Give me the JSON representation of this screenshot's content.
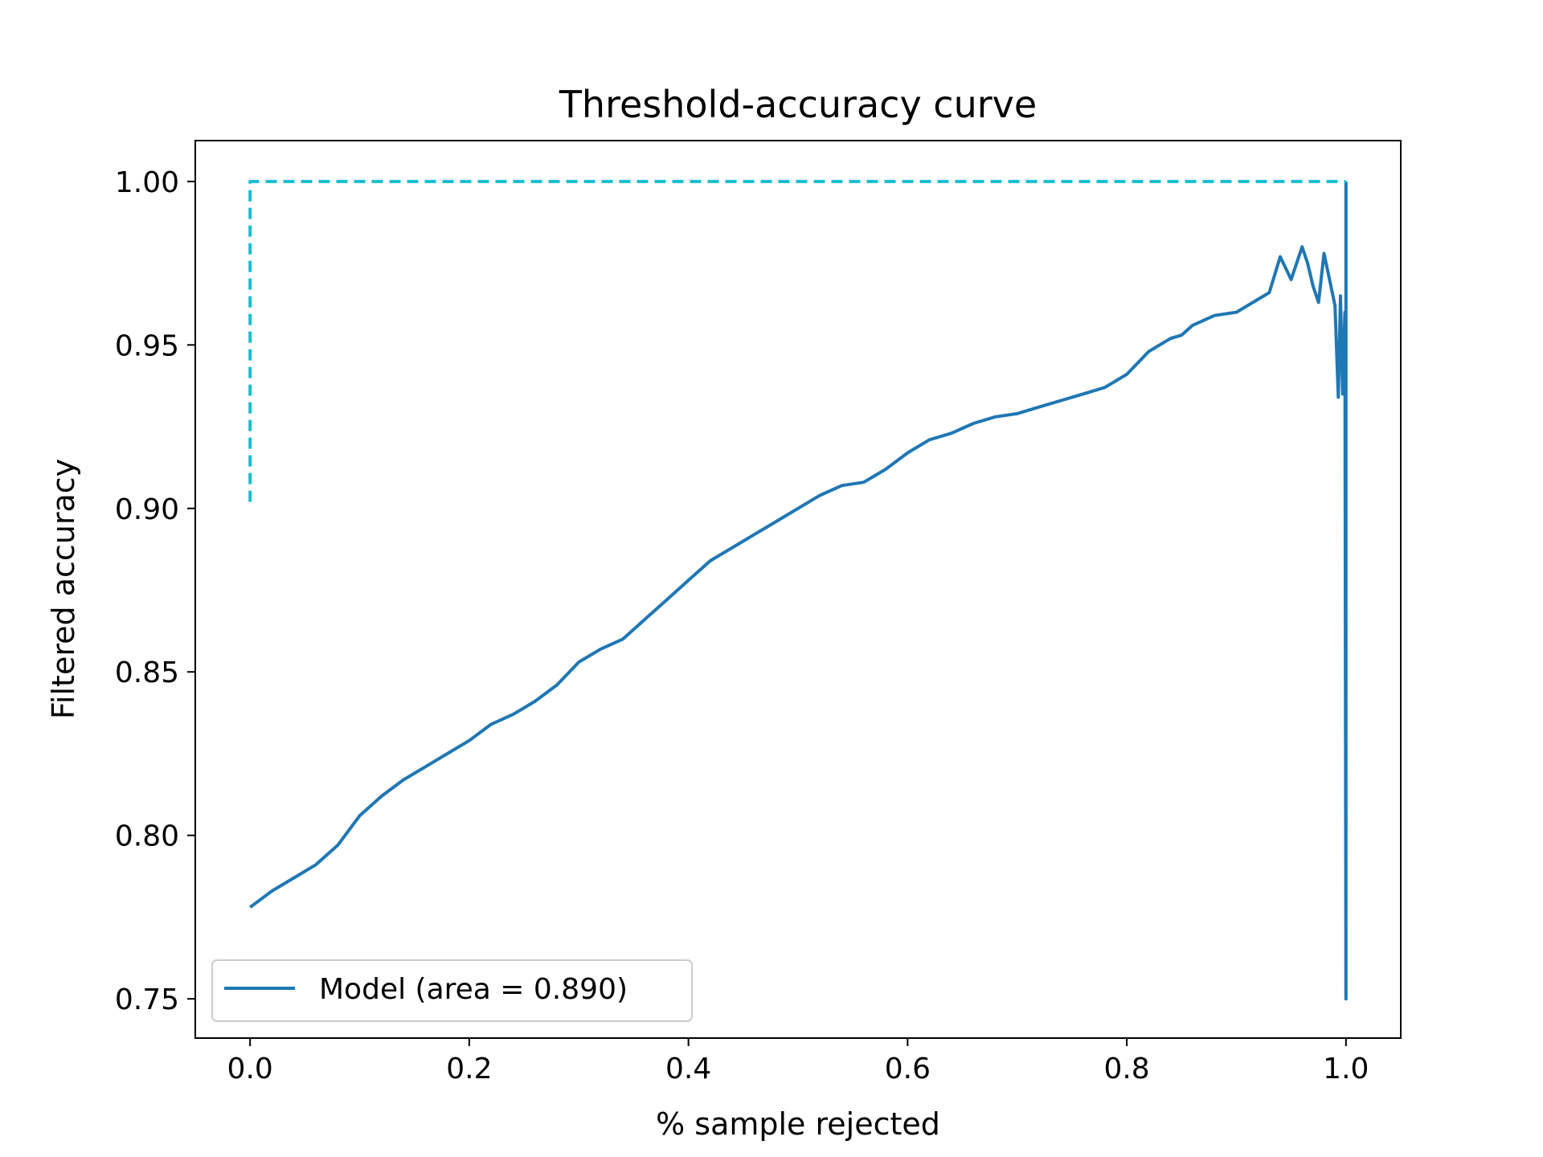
{
  "chart_data": {
    "type": "line",
    "title": "Threshold-accuracy curve",
    "xlabel": "% sample rejected",
    "ylabel": "Filtered accuracy",
    "xlim": [
      -0.05,
      1.05
    ],
    "ylim": [
      0.738,
      1.0125
    ],
    "x_ticks": [
      "0.0",
      "0.2",
      "0.4",
      "0.6",
      "0.8",
      "1.0"
    ],
    "y_ticks": [
      "0.75",
      "0.80",
      "0.85",
      "0.90",
      "0.95",
      "1.00"
    ],
    "grid": false,
    "legend": {
      "placement": "lower-left",
      "entries": [
        "Model (area = 0.890)"
      ]
    },
    "series": [
      {
        "name": "Model (area = 0.890)",
        "color": "#1f77b4",
        "style": "solid",
        "x": [
          0.0,
          0.02,
          0.04,
          0.06,
          0.08,
          0.1,
          0.12,
          0.14,
          0.16,
          0.18,
          0.2,
          0.22,
          0.24,
          0.26,
          0.28,
          0.3,
          0.32,
          0.34,
          0.36,
          0.38,
          0.4,
          0.42,
          0.44,
          0.46,
          0.48,
          0.5,
          0.52,
          0.54,
          0.56,
          0.58,
          0.6,
          0.62,
          0.64,
          0.66,
          0.68,
          0.7,
          0.72,
          0.74,
          0.76,
          0.78,
          0.8,
          0.82,
          0.84,
          0.85,
          0.86,
          0.88,
          0.9,
          0.91,
          0.92,
          0.93,
          0.94,
          0.95,
          0.96,
          0.965,
          0.97,
          0.975,
          0.98,
          0.985,
          0.99,
          0.993,
          0.995,
          0.997,
          0.999,
          1.0,
          1.0
        ],
        "y": [
          0.778,
          0.783,
          0.787,
          0.791,
          0.797,
          0.806,
          0.812,
          0.817,
          0.821,
          0.825,
          0.829,
          0.834,
          0.837,
          0.841,
          0.846,
          0.853,
          0.857,
          0.86,
          0.866,
          0.872,
          0.878,
          0.884,
          0.888,
          0.892,
          0.896,
          0.9,
          0.904,
          0.907,
          0.908,
          0.912,
          0.917,
          0.921,
          0.923,
          0.926,
          0.928,
          0.929,
          0.931,
          0.933,
          0.935,
          0.937,
          0.941,
          0.948,
          0.952,
          0.953,
          0.956,
          0.959,
          0.96,
          0.962,
          0.964,
          0.966,
          0.977,
          0.97,
          0.98,
          0.975,
          0.968,
          0.963,
          0.978,
          0.97,
          0.962,
          0.934,
          0.965,
          0.935,
          0.96,
          0.75,
          1.0
        ]
      },
      {
        "name": "",
        "color": "#17becf",
        "style": "dashed",
        "x": [
          0.0,
          0.0,
          1.0
        ],
        "y": [
          0.902,
          1.0,
          1.0
        ]
      }
    ]
  }
}
